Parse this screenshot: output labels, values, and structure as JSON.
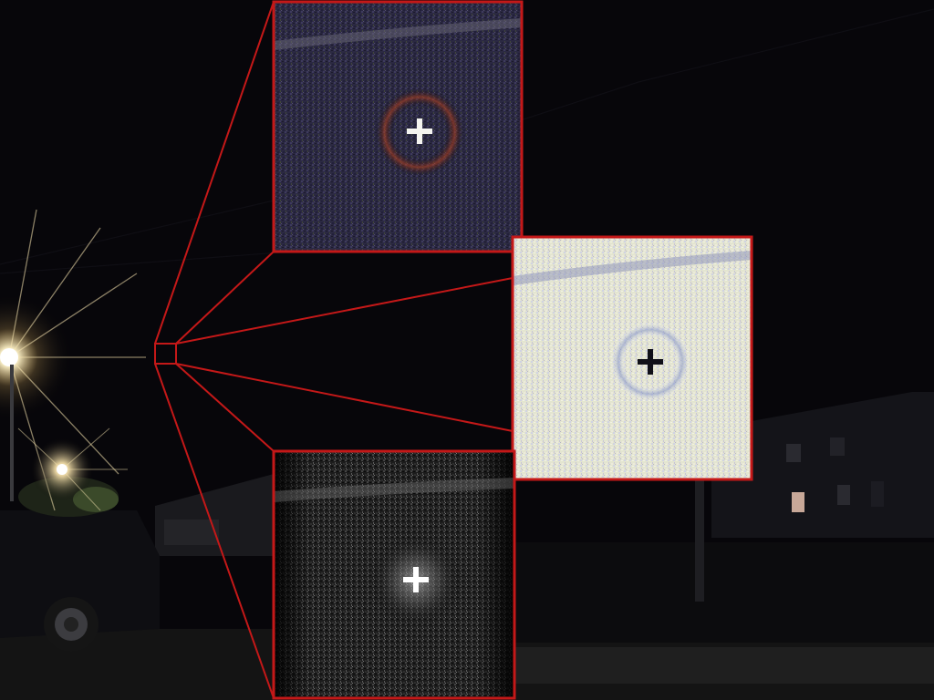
{
  "scene": {
    "description_free": true,
    "colors": {
      "sky": "#07060a",
      "highlight_frame": "#c41818",
      "streetlight_glow": "#fff6d8",
      "inset_dark_bg": "#2a2740",
      "inset_light_bg": "#e4e6d2",
      "inset_gray_bg": "#1a1a1a"
    }
  },
  "insets": [
    {
      "name": "inset-original-color",
      "icon": "crosshair-light-icon"
    },
    {
      "name": "inset-inverted",
      "icon": "crosshair-dark-icon"
    },
    {
      "name": "inset-grayscale-enhanced",
      "icon": "crosshair-light-icon"
    }
  ]
}
